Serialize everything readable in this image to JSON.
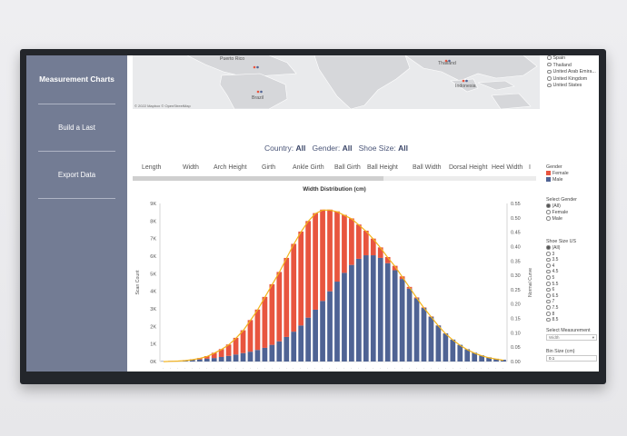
{
  "sidebar": {
    "title": "Measurement Charts",
    "items": [
      {
        "label": "Build a Last"
      },
      {
        "label": "Export Data"
      }
    ]
  },
  "map": {
    "labels": {
      "puerto_rico": "Puerto Rico",
      "brazil": "Brazil",
      "thailand": "Thailand",
      "indonesia": "Indonesia"
    },
    "credit": "© 2022 Mapbox © OpenStreetMap"
  },
  "country_filter": {
    "options": [
      "Spain",
      "Thailand",
      "United Arab Emira...",
      "United Kingdom",
      "United States"
    ]
  },
  "filters": {
    "country_label": "Country:",
    "country_value": "All",
    "gender_label": "Gender:",
    "gender_value": "All",
    "size_label": "Shoe Size:",
    "size_value": "All"
  },
  "tabs": [
    "Length",
    "Width",
    "Arch Height",
    "Girth",
    "Ankle Girth",
    "Ball Girth",
    "Ball Height",
    "Ball Width",
    "Dorsal Height",
    "Heel Width",
    "I"
  ],
  "right_panel": {
    "gender_legend_title": "Gender",
    "legend": [
      {
        "label": "Female",
        "color": "#e8553f"
      },
      {
        "label": "Male",
        "color": "#4f6394"
      }
    ],
    "select_gender_title": "Select Gender",
    "gender_options": [
      {
        "label": "(All)",
        "selected": true
      },
      {
        "label": "Female",
        "selected": false
      },
      {
        "label": "Male",
        "selected": false
      }
    ],
    "shoe_size_title": "Shoe Size US",
    "shoe_size_options": [
      "(All)",
      "3",
      "3.5",
      "4",
      "4.5",
      "5",
      "5.5",
      "6",
      "6.5",
      "7",
      "7.5",
      "8",
      "8.5"
    ],
    "select_measurement_title": "Select Measurement",
    "select_measurement_value": "Width",
    "bin_size_title": "Bin Size (cm)",
    "bin_size_value": "0.1"
  },
  "chart_data": {
    "type": "bar",
    "title": "Width Distribution  (cm)",
    "ylabel": "Scan Count",
    "y2label": "Normal Curve",
    "ylim": [
      0,
      9000
    ],
    "y2lim": [
      0.0,
      0.55
    ],
    "yticks": [
      "0K",
      "1K",
      "2K",
      "3K",
      "4K",
      "5K",
      "6K",
      "7K",
      "8K",
      "9K"
    ],
    "y2ticks": [
      "0.00",
      "0.05",
      "0.10",
      "0.15",
      "0.20",
      "0.25",
      "0.30",
      "0.35",
      "0.40",
      "0.45",
      "0.50",
      "0.55"
    ],
    "stacked": true,
    "series": [
      {
        "name": "Male",
        "color": "#4f6394",
        "values": [
          20,
          30,
          40,
          60,
          90,
          120,
          160,
          200,
          260,
          320,
          400,
          480,
          560,
          660,
          780,
          950,
          1150,
          1400,
          1700,
          2050,
          2500,
          2950,
          3450,
          4000,
          4550,
          5050,
          5500,
          5850,
          6050,
          6050,
          5900,
          5600,
          5200,
          4700,
          4150,
          3600,
          3050,
          2550,
          2050,
          1600,
          1250,
          950,
          700,
          500,
          350,
          240,
          160,
          100
        ]
      },
      {
        "name": "Female",
        "color": "#e8553f",
        "values": [
          0,
          5,
          10,
          20,
          40,
          80,
          150,
          300,
          450,
          650,
          950,
          1300,
          1800,
          2300,
          2900,
          3450,
          3950,
          4500,
          5000,
          5350,
          5500,
          5500,
          5200,
          4650,
          4000,
          3300,
          2650,
          1950,
          1400,
          950,
          600,
          350,
          250,
          150,
          100,
          50,
          30,
          20,
          10,
          5,
          0,
          0,
          0,
          0,
          0,
          0,
          0,
          0
        ]
      }
    ],
    "curve_color": "#f3b41d",
    "legend": "right-panel"
  }
}
